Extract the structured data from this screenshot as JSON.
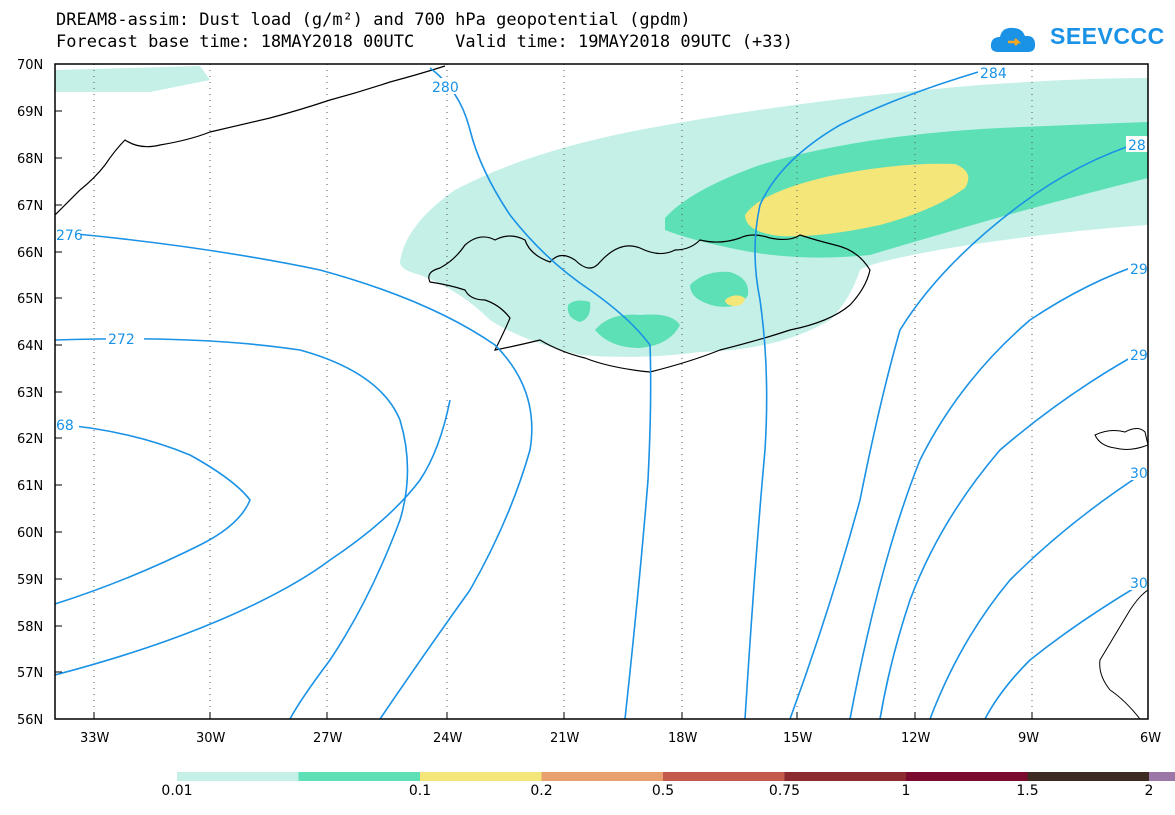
{
  "header": {
    "title": "DREAM8-assim: Dust load (g/m²) and 700 hPa geopotential (gpdm)",
    "subtitle": "Forecast base time: 18MAY2018 00UTC    Valid time: 19MAY2018 09UTC (+33)"
  },
  "logo": {
    "text": "SEEVCCC",
    "icon": "cloud-icon"
  },
  "map": {
    "lat_ticks": [
      "70N",
      "69N",
      "68N",
      "67N",
      "66N",
      "65N",
      "64N",
      "63N",
      "62N",
      "61N",
      "60N",
      "59N",
      "58N",
      "57N",
      "56N"
    ],
    "lon_ticks": [
      "33W",
      "30W",
      "27W",
      "24W",
      "21W",
      "18W",
      "15W",
      "12W",
      "9W",
      "6W"
    ],
    "contour_labels": [
      "280",
      "284",
      "28",
      "276",
      "29",
      "272",
      "29",
      "68",
      "30",
      "30"
    ]
  },
  "legend": {
    "colors": [
      "#c4f0e8",
      "#5de0b5",
      "#f5e67a",
      "#e8a06e",
      "#c45a4a",
      "#8b2b2f",
      "#7a0b2e",
      "#3d2a20",
      "#9b77a8"
    ],
    "labels": [
      "0.01",
      "0.1",
      "0.2",
      "0.5",
      "0.75",
      "1",
      "1.5",
      "2"
    ]
  },
  "colors": {
    "contour": "#1a92e6",
    "coast": "#000000"
  }
}
